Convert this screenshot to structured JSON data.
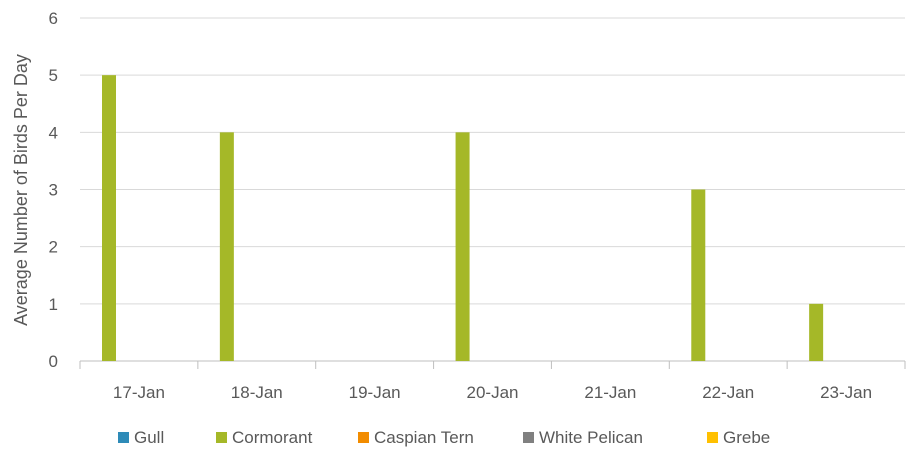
{
  "chart_data": {
    "type": "bar",
    "ylabel": "Average Number of Birds Per Day",
    "ylim": [
      0,
      6
    ],
    "yticks": [
      "0",
      "1",
      "2",
      "3",
      "4",
      "5",
      "6"
    ],
    "categories": [
      "17-Jan",
      "18-Jan",
      "19-Jan",
      "20-Jan",
      "21-Jan",
      "22-Jan",
      "23-Jan"
    ],
    "series": [
      {
        "name": "Gull",
        "color": "#2e8bb8",
        "values": [
          0,
          0,
          0,
          0,
          0,
          0,
          0
        ]
      },
      {
        "name": "Cormorant",
        "color": "#a5b828",
        "values": [
          5,
          4,
          0,
          4,
          0,
          3,
          1
        ]
      },
      {
        "name": "Caspian Tern",
        "color": "#f28c00",
        "values": [
          0,
          0,
          0,
          0,
          0,
          0,
          0
        ]
      },
      {
        "name": "White Pelican",
        "color": "#808080",
        "values": [
          0,
          0,
          0,
          0,
          0,
          0,
          0
        ]
      },
      {
        "name": "Grebe",
        "color": "#ffc000",
        "values": [
          0,
          0,
          0,
          0,
          0,
          0,
          0
        ]
      }
    ],
    "grid": true,
    "legend_position": "bottom"
  }
}
